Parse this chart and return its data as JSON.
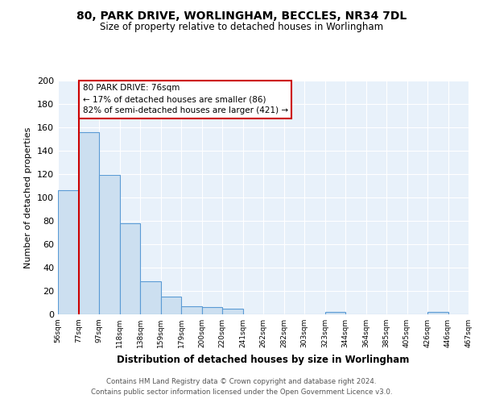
{
  "title1": "80, PARK DRIVE, WORLINGHAM, BECCLES, NR34 7DL",
  "title2": "Size of property relative to detached houses in Worlingham",
  "xlabel": "Distribution of detached houses by size in Worlingham",
  "ylabel": "Number of detached properties",
  "bin_labels": [
    "56sqm",
    "77sqm",
    "97sqm",
    "118sqm",
    "138sqm",
    "159sqm",
    "179sqm",
    "200sqm",
    "220sqm",
    "241sqm",
    "262sqm",
    "282sqm",
    "303sqm",
    "323sqm",
    "344sqm",
    "364sqm",
    "385sqm",
    "405sqm",
    "426sqm",
    "446sqm",
    "467sqm"
  ],
  "bar_heights": [
    106,
    156,
    119,
    78,
    28,
    15,
    7,
    6,
    5,
    0,
    0,
    0,
    0,
    2,
    0,
    0,
    0,
    0,
    2,
    0
  ],
  "bar_color": "#ccdff0",
  "bar_edge_color": "#5b9bd5",
  "vline_x": 1,
  "vline_color": "#cc0000",
  "annotation_line1": "80 PARK DRIVE: 76sqm",
  "annotation_line2": "← 17% of detached houses are smaller (86)",
  "annotation_line3": "82% of semi-detached houses are larger (421) →",
  "annotation_box_color": "#ffffff",
  "annotation_box_edge": "#cc0000",
  "ylim": [
    0,
    200
  ],
  "yticks": [
    0,
    20,
    40,
    60,
    80,
    100,
    120,
    140,
    160,
    180,
    200
  ],
  "background_color": "#e8f1fa",
  "grid_color": "#ffffff",
  "footer1": "Contains HM Land Registry data © Crown copyright and database right 2024.",
  "footer2": "Contains public sector information licensed under the Open Government Licence v3.0."
}
